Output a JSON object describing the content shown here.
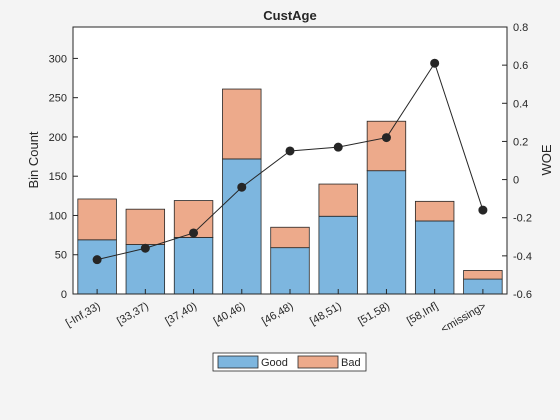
{
  "chart_data": {
    "type": "bar",
    "title": "CustAge",
    "xlabel": "",
    "ylabel": "Bin Count",
    "y2label": "WOE",
    "categories": [
      "[-Inf,33)",
      "[33,37)",
      "[37,40)",
      "[40,46)",
      "[46,48)",
      "[48,51)",
      "[51,58)",
      "[58,Inf]",
      "<missing>"
    ],
    "stacked": true,
    "series": [
      {
        "name": "Good",
        "type": "bar",
        "axis": "left",
        "color": "#7db6df",
        "values": [
          69,
          63,
          72,
          172,
          59,
          99,
          157,
          93,
          19
        ]
      },
      {
        "name": "Bad",
        "type": "bar",
        "axis": "left",
        "color": "#edaa8b",
        "values": [
          52,
          45,
          47,
          89,
          26,
          41,
          63,
          25,
          11
        ]
      },
      {
        "type": "line",
        "axis": "right",
        "color": "#262626",
        "values": [
          -0.42,
          -0.36,
          -0.28,
          -0.04,
          0.15,
          0.17,
          0.22,
          0.61,
          -0.16
        ]
      }
    ],
    "ylim": [
      0,
      340
    ],
    "yticks": [
      0,
      50,
      100,
      150,
      200,
      250,
      300
    ],
    "y2lim": [
      -0.6,
      0.8
    ],
    "y2ticks": [
      -0.6,
      -0.4,
      -0.2,
      0,
      0.2,
      0.4,
      0.6,
      0.8
    ],
    "y2ticklabels": [
      "-0.6",
      "-0.4",
      "-0.2",
      "0",
      "0.2",
      "0.4",
      "0.6",
      "0.8"
    ],
    "legend": {
      "position": "bottom-outside",
      "entries": [
        "Good",
        "Bad"
      ]
    },
    "grid": false
  }
}
